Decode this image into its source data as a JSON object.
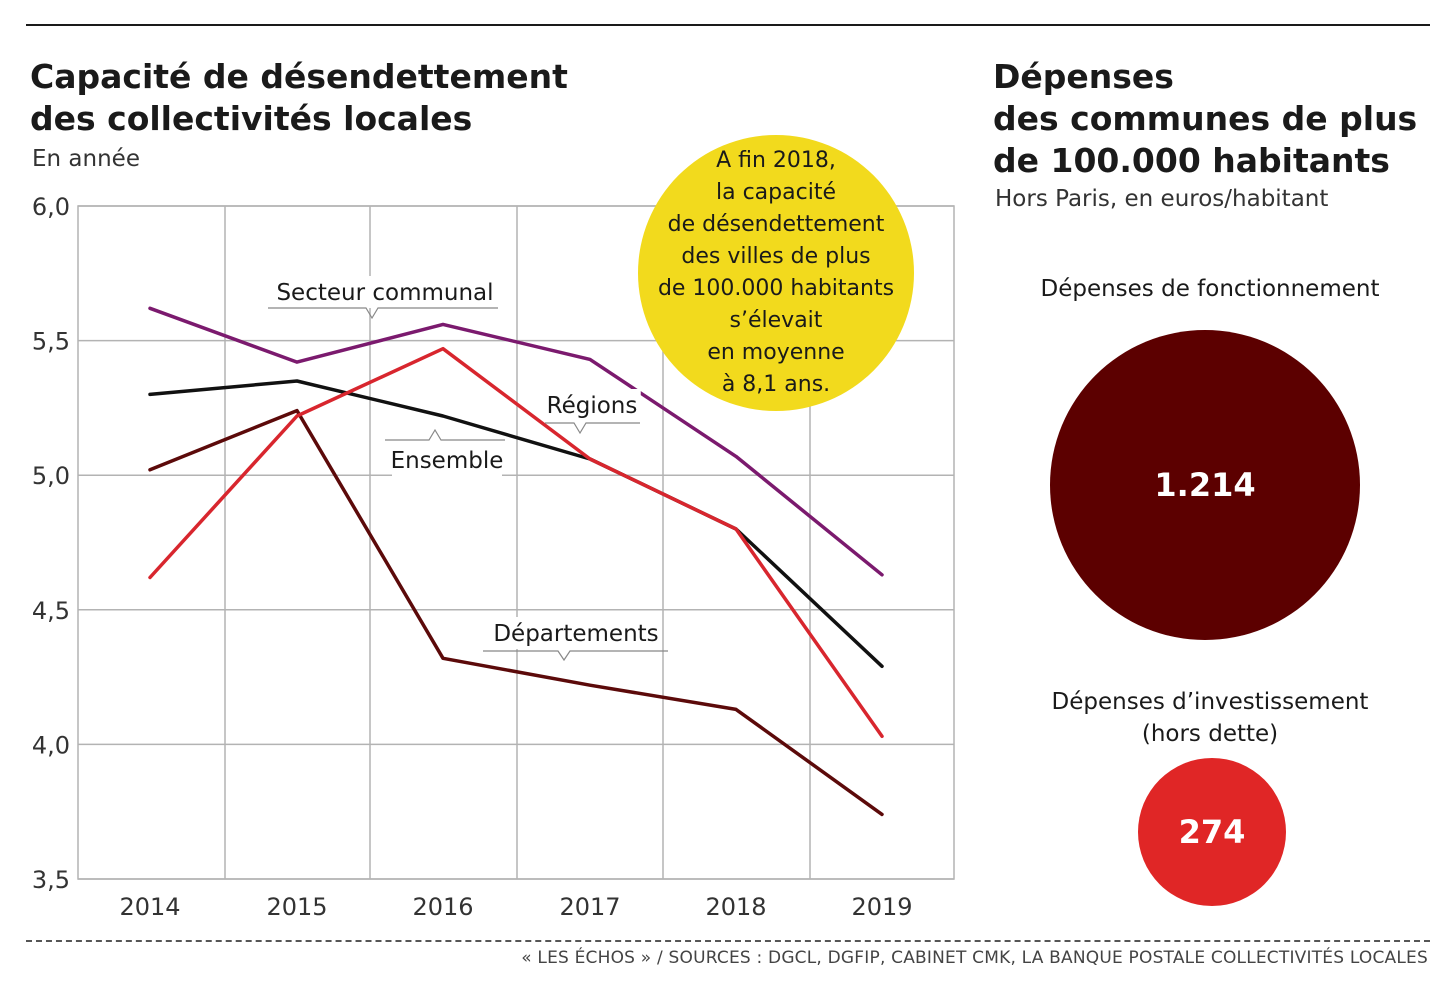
{
  "left_panel": {
    "title_line1": "Capacité de désendettement",
    "title_line2": "des collectivités locales",
    "subtitle": "En année"
  },
  "right_panel": {
    "title_line1": "Dépenses",
    "title_line2": "des communes de plus",
    "title_line3": "de 100.000 habitants",
    "subtitle": "Hors Paris, en euros/habitant",
    "fonctionnement_label": "Dépenses de fonctionnement",
    "fonctionnement_value": "1.214",
    "investissement_label_line1": "Dépenses d’investissement",
    "investissement_label_line2": "(hors dette)",
    "investissement_value": "274"
  },
  "callout": {
    "lines": [
      "A fin 2018,",
      "la capacité",
      "de désendettement",
      "des villes de plus",
      "de 100.000 habitants",
      "s’élevait",
      "en moyenne",
      "à 8,1 ans."
    ]
  },
  "source": "« LES ÉCHOS » / SOURCES : DGCL, DGFIP, CABINET CMK, LA BANQUE POSTALE COLLECTIVITÉS LOCALES",
  "colors": {
    "secteur_communal": "#7b1a6e",
    "ensemble": "#111111",
    "regions": "#d8262e",
    "departements": "#5c0a0a",
    "grid": "#b3b3b3",
    "callout": "#f2da1d",
    "fonctionnement": "#5c0000",
    "investissement": "#e02626"
  },
  "chart_data": [
    {
      "type": "line",
      "title": "Capacité de désendettement des collectivités locales",
      "subtitle": "En année",
      "x": [
        2014,
        2015,
        2016,
        2017,
        2018,
        2019
      ],
      "x_tick_labels": [
        "2014",
        "2015",
        "2016",
        "2017",
        "2018",
        "2019"
      ],
      "y_tick_labels": [
        "6,0",
        "5,5",
        "5,0",
        "4,5",
        "4,0",
        "3,5"
      ],
      "ylim": [
        3.5,
        6.0
      ],
      "grid": true,
      "series": [
        {
          "name": "Secteur communal",
          "values": [
            5.62,
            5.42,
            5.56,
            5.43,
            5.07,
            4.63
          ]
        },
        {
          "name": "Ensemble",
          "values": [
            5.3,
            5.35,
            5.22,
            5.06,
            4.8,
            4.29
          ]
        },
        {
          "name": "Régions",
          "values": [
            4.62,
            5.22,
            5.47,
            5.06,
            4.8,
            4.03
          ]
        },
        {
          "name": "Départements",
          "values": [
            5.02,
            5.24,
            4.32,
            4.22,
            4.13,
            3.74
          ]
        }
      ]
    },
    {
      "type": "bubble",
      "title": "Dépenses des communes de plus de 100.000 habitants",
      "subtitle": "Hors Paris, en euros/habitant",
      "categories": [
        "Dépenses de fonctionnement",
        "Dépenses d’investissement (hors dette)"
      ],
      "values": [
        1214,
        274
      ]
    }
  ]
}
